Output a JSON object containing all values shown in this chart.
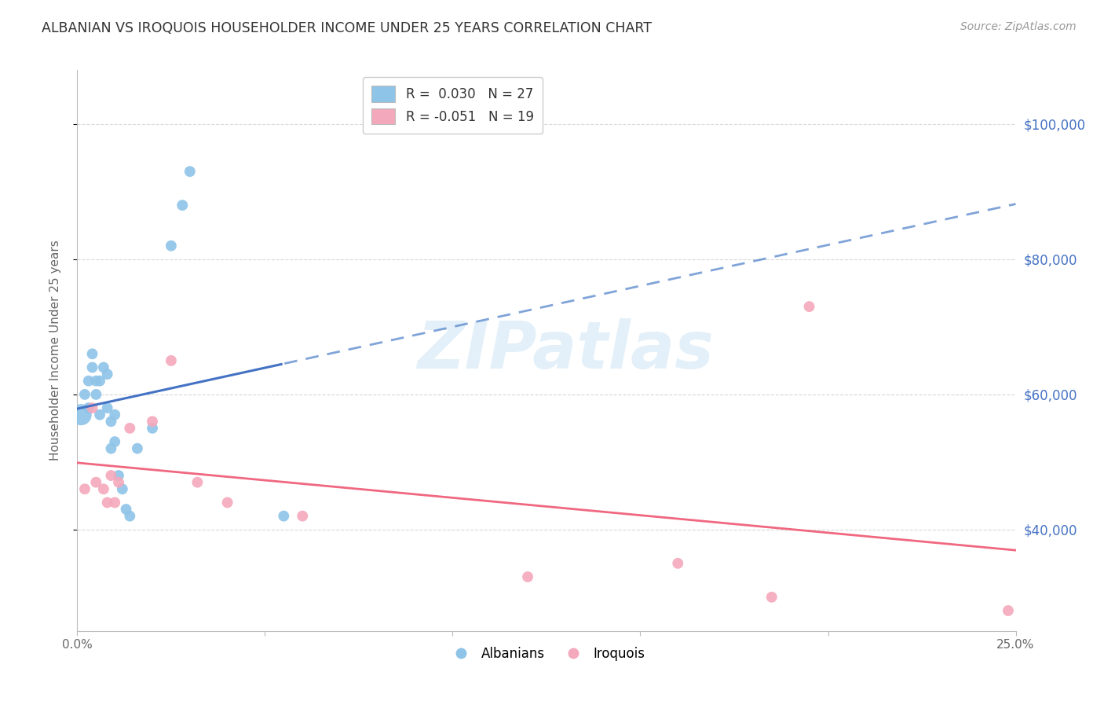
{
  "title": "ALBANIAN VS IROQUOIS HOUSEHOLDER INCOME UNDER 25 YEARS CORRELATION CHART",
  "source": "Source: ZipAtlas.com",
  "ylabel": "Householder Income Under 25 years",
  "ytick_labels": [
    "$40,000",
    "$60,000",
    "$80,000",
    "$100,000"
  ],
  "ytick_values": [
    40000,
    60000,
    80000,
    100000
  ],
  "xlim": [
    0.0,
    0.25
  ],
  "ylim": [
    25000,
    108000
  ],
  "watermark": "ZIPatlas",
  "albanian_color": "#8ec4e8",
  "iroquois_color": "#f4a8bc",
  "trendline_albanian_solid": "#4472c4",
  "trendline_albanian_dashed": "#5585cc",
  "trendline_iroquois_color": "#f06880",
  "albanians_x": [
    0.001,
    0.002,
    0.003,
    0.003,
    0.004,
    0.004,
    0.005,
    0.005,
    0.006,
    0.006,
    0.007,
    0.008,
    0.008,
    0.009,
    0.009,
    0.01,
    0.01,
    0.011,
    0.012,
    0.013,
    0.014,
    0.016,
    0.02,
    0.025,
    0.028,
    0.03,
    0.055
  ],
  "albanians_y": [
    57000,
    60000,
    62000,
    58000,
    66000,
    64000,
    62000,
    60000,
    62000,
    57000,
    64000,
    63000,
    58000,
    56000,
    52000,
    57000,
    53000,
    48000,
    46000,
    43000,
    42000,
    52000,
    55000,
    82000,
    88000,
    93000,
    42000
  ],
  "albanians_size": [
    380,
    100,
    100,
    100,
    100,
    100,
    100,
    100,
    100,
    100,
    100,
    100,
    100,
    100,
    100,
    100,
    100,
    100,
    100,
    100,
    100,
    100,
    100,
    100,
    100,
    100,
    100
  ],
  "iroquois_x": [
    0.002,
    0.004,
    0.005,
    0.007,
    0.008,
    0.009,
    0.01,
    0.011,
    0.014,
    0.02,
    0.025,
    0.032,
    0.04,
    0.06,
    0.12,
    0.16,
    0.185,
    0.195,
    0.248
  ],
  "iroquois_y": [
    46000,
    58000,
    47000,
    46000,
    44000,
    48000,
    44000,
    47000,
    55000,
    56000,
    65000,
    47000,
    44000,
    42000,
    33000,
    35000,
    30000,
    73000,
    28000
  ],
  "iroquois_size": [
    100,
    100,
    100,
    100,
    100,
    100,
    100,
    100,
    100,
    100,
    100,
    100,
    100,
    100,
    100,
    100,
    100,
    100,
    100
  ],
  "grid_color": "#d8d8d8",
  "background_color": "#ffffff"
}
